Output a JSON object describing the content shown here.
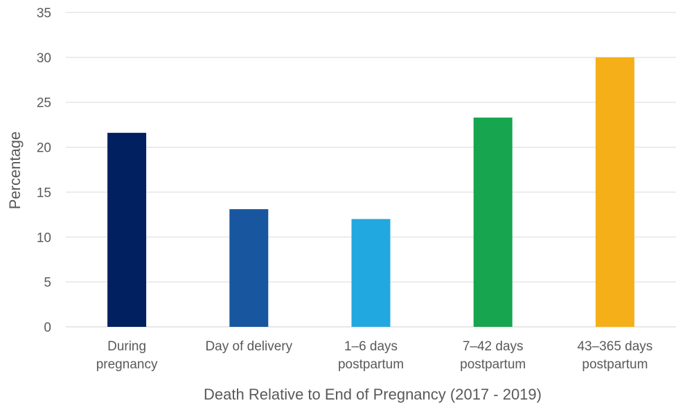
{
  "chart_data": {
    "type": "bar",
    "title": "",
    "xlabel": "Death Relative to End of Pregnancy (2017 - 2019)",
    "ylabel": "Percentage",
    "ylim": [
      0,
      35
    ],
    "yticks": [
      0,
      5,
      10,
      15,
      20,
      25,
      30,
      35
    ],
    "grid": true,
    "legend": "none",
    "categories": [
      [
        "During",
        "pregnancy"
      ],
      [
        "Day of delivery"
      ],
      [
        "1–6 days",
        "postpartum"
      ],
      [
        "7–42 days",
        "postpartum"
      ],
      [
        "43–365 days",
        "postpartum"
      ]
    ],
    "values": [
      21.6,
      13.1,
      12.0,
      23.3,
      30.0
    ],
    "colors": [
      "#002060",
      "#1857A0",
      "#22A8E0",
      "#17A550",
      "#F5AF19"
    ]
  }
}
